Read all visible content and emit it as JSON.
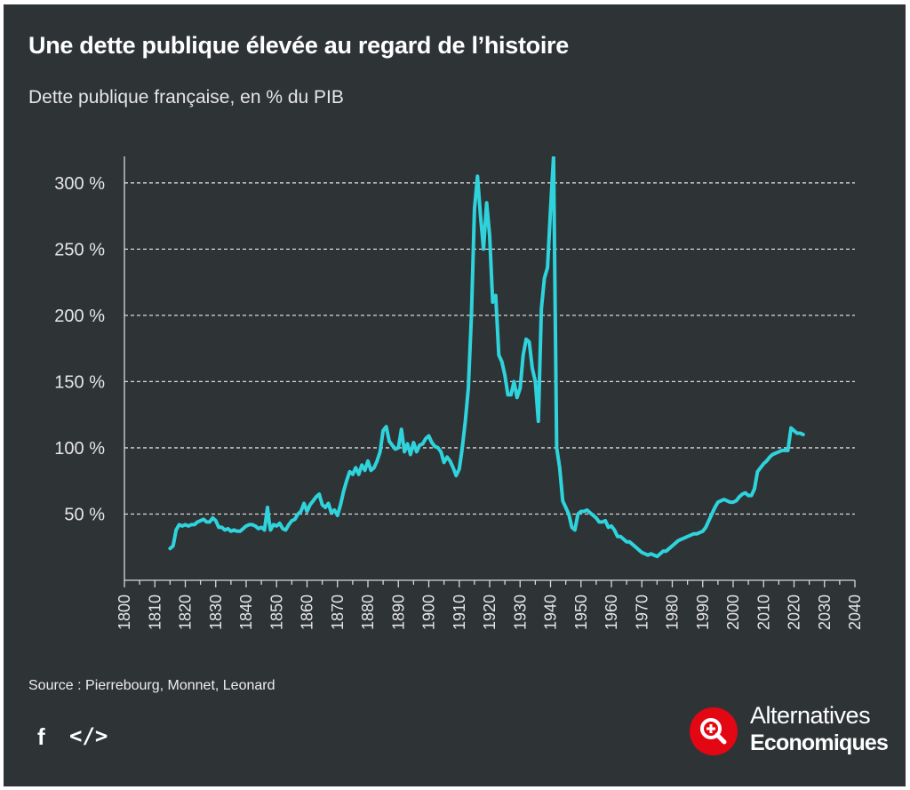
{
  "title": "Une dette publique élevée au regard de l’histoire",
  "subtitle": "Dette publique française, en % du PIB",
  "source": "Source : Pierrebourg, Monnet, Leonard",
  "share": {
    "facebook": "f",
    "embed": "</>"
  },
  "brand": {
    "line1": "Alternatives",
    "line2": "Economiques",
    "color": "#e30613"
  },
  "colors": {
    "background": "#2e3336",
    "line": "#2ed3dc",
    "grid": "#d9d9d9",
    "text": "#e6e6e6"
  },
  "chart_data": {
    "type": "line",
    "title": "Une dette publique élevée au regard de l’histoire",
    "subtitle": "Dette publique française, en % du PIB",
    "xlabel": "",
    "ylabel": "",
    "xlim": [
      1800,
      2040
    ],
    "ylim": [
      0,
      320
    ],
    "x_ticks": [
      1800,
      1810,
      1820,
      1830,
      1840,
      1850,
      1860,
      1870,
      1880,
      1890,
      1900,
      1910,
      1920,
      1930,
      1940,
      1950,
      1960,
      1970,
      1980,
      1990,
      2000,
      2010,
      2020,
      2030,
      2040
    ],
    "x_tick_labels": [
      "1800",
      "1810",
      "1820",
      "1830",
      "1840",
      "1850",
      "1860",
      "1870",
      "1880",
      "1890",
      "1900",
      "1910",
      "1920",
      "1930",
      "1940",
      "1950",
      "1960",
      "1970",
      "1980",
      "1990",
      "2000",
      "2010",
      "2020",
      "2030",
      "2040"
    ],
    "y_ticks": [
      50,
      100,
      150,
      200,
      250,
      300
    ],
    "y_tick_labels": [
      "50 %",
      "100 %",
      "150 %",
      "200 %",
      "250 %",
      "300 %"
    ],
    "grid": "horizontal dashed",
    "series": [
      {
        "name": "Dette publique (% du PIB)",
        "x": [
          1815,
          1816,
          1817,
          1818,
          1819,
          1820,
          1821,
          1822,
          1823,
          1824,
          1825,
          1826,
          1827,
          1828,
          1829,
          1830,
          1831,
          1832,
          1833,
          1834,
          1835,
          1836,
          1837,
          1838,
          1839,
          1840,
          1841,
          1842,
          1843,
          1844,
          1845,
          1846,
          1847,
          1847.5,
          1848,
          1849,
          1850,
          1851,
          1852,
          1853,
          1854,
          1855,
          1856,
          1857,
          1858,
          1859,
          1860,
          1861,
          1862,
          1863,
          1864,
          1865,
          1866,
          1867,
          1868,
          1869,
          1870,
          1871,
          1872,
          1873,
          1874,
          1875,
          1876,
          1877,
          1878,
          1879,
          1880,
          1881,
          1882,
          1883,
          1884,
          1885,
          1886,
          1887,
          1888,
          1889,
          1890,
          1891,
          1892,
          1893,
          1894,
          1895,
          1896,
          1897,
          1898,
          1899,
          1900,
          1901,
          1902,
          1903,
          1904,
          1905,
          1906,
          1907,
          1908,
          1909,
          1910,
          1911,
          1912,
          1913,
          1914,
          1915,
          1916,
          1917,
          1918,
          1919,
          1920,
          1921,
          1922,
          1923,
          1924,
          1925,
          1926,
          1927,
          1928,
          1929,
          1930,
          1931,
          1932,
          1933,
          1934,
          1935,
          1936,
          1937,
          1938,
          1939,
          1940,
          1941,
          1942,
          1943,
          1944,
          1945,
          1946,
          1947,
          1948,
          1949,
          1950,
          1951,
          1952,
          1953,
          1954,
          1955,
          1956,
          1957,
          1958,
          1959,
          1960,
          1961,
          1962,
          1963,
          1964,
          1965,
          1966,
          1967,
          1968,
          1969,
          1970,
          1971,
          1972,
          1973,
          1974,
          1975,
          1976,
          1977,
          1978,
          1979,
          1980,
          1981,
          1982,
          1983,
          1984,
          1985,
          1986,
          1987,
          1988,
          1989,
          1990,
          1991,
          1992,
          1993,
          1994,
          1995,
          1996,
          1997,
          1998,
          1999,
          2000,
          2001,
          2002,
          2003,
          2004,
          2005,
          2006,
          2007,
          2008,
          2009,
          2010,
          2011,
          2012,
          2013,
          2014,
          2015,
          2016,
          2017,
          2018,
          2019,
          2020,
          2021,
          2022,
          2023
        ],
        "values": [
          24,
          26,
          38,
          42,
          41,
          42,
          41,
          42,
          42,
          44,
          45,
          46,
          44,
          44,
          47,
          45,
          40,
          40,
          38,
          39,
          37,
          38,
          37,
          37,
          39,
          41,
          42,
          42,
          41,
          39,
          40,
          38,
          55,
          45,
          38,
          42,
          41,
          43,
          39,
          38,
          42,
          45,
          46,
          50,
          52,
          58,
          52,
          57,
          60,
          63,
          65,
          57,
          55,
          58,
          51,
          53,
          49,
          57,
          67,
          75,
          82,
          80,
          85,
          80,
          87,
          83,
          90,
          83,
          85,
          90,
          97,
          113,
          116,
          105,
          102,
          99,
          100,
          114,
          97,
          103,
          95,
          104,
          97,
          102,
          103,
          107,
          109,
          104,
          101,
          100,
          97,
          89,
          93,
          90,
          85,
          79,
          84,
          100,
          120,
          145,
          200,
          280,
          305,
          275,
          250,
          285,
          260,
          210,
          215,
          170,
          165,
          155,
          140,
          140,
          150,
          138,
          145,
          170,
          182,
          180,
          160,
          150,
          120,
          205,
          228,
          236,
          280,
          320,
          100,
          85,
          60,
          55,
          50,
          40,
          38,
          50,
          52,
          52,
          53,
          51,
          49,
          47,
          44,
          44,
          45,
          40,
          41,
          38,
          33,
          33,
          31,
          29,
          29,
          27,
          25,
          23,
          21,
          20,
          19,
          20,
          19,
          18,
          20,
          22,
          22,
          24,
          26,
          28,
          30,
          31,
          32,
          33,
          34,
          35,
          35,
          36,
          37,
          40,
          45,
          50,
          55,
          59,
          60,
          61,
          60,
          59,
          59,
          60,
          63,
          65,
          66,
          64,
          64,
          69,
          82,
          85,
          88,
          90,
          93,
          95,
          96,
          97,
          98,
          98,
          98,
          115,
          113,
          111,
          111,
          110
        ]
      }
    ]
  }
}
